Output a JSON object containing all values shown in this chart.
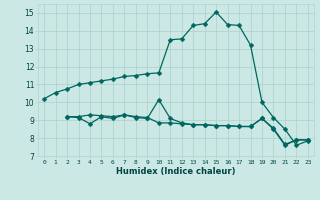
{
  "background_color": "#cce8e4",
  "grid_color": "#b0d4d0",
  "line_color": "#006660",
  "xlim": [
    -0.5,
    23.5
  ],
  "ylim": [
    7,
    15.5
  ],
  "xlabel": "Humidex (Indice chaleur)",
  "xtick_labels": [
    "0",
    "1",
    "2",
    "3",
    "4",
    "5",
    "6",
    "7",
    "8",
    "9",
    "10",
    "11",
    "12",
    "13",
    "14",
    "15",
    "16",
    "17",
    "18",
    "19",
    "20",
    "21",
    "22",
    "23"
  ],
  "yticks": [
    7,
    8,
    9,
    10,
    11,
    12,
    13,
    14,
    15
  ],
  "curve1_x": [
    0,
    1,
    2,
    3,
    4,
    5,
    6,
    7,
    8,
    9,
    10,
    11,
    12,
    13,
    14,
    15,
    16,
    17,
    18,
    19,
    20,
    21,
    22,
    23
  ],
  "curve1_y": [
    10.2,
    10.55,
    10.75,
    11.0,
    11.1,
    11.2,
    11.3,
    11.45,
    11.5,
    11.6,
    11.65,
    13.5,
    13.55,
    14.3,
    14.4,
    15.05,
    14.35,
    14.3,
    13.2,
    10.0,
    9.15,
    8.5,
    7.6,
    7.85
  ],
  "curve2_x": [
    2,
    3,
    4,
    5,
    6,
    7,
    8,
    9,
    10,
    11,
    12,
    13,
    14,
    15,
    16,
    17,
    18,
    19,
    20,
    21,
    22,
    23
  ],
  "curve2_y": [
    9.2,
    9.2,
    9.3,
    9.25,
    9.2,
    9.3,
    9.2,
    9.15,
    8.85,
    8.85,
    8.8,
    8.75,
    8.75,
    8.7,
    8.7,
    8.65,
    8.65,
    9.1,
    8.5,
    7.6,
    7.9,
    7.9
  ],
  "curve3_x": [
    2,
    3,
    4,
    5,
    6,
    7,
    8,
    9,
    10,
    11,
    12,
    13,
    14,
    15,
    16,
    17,
    18,
    19,
    20,
    21,
    22,
    23
  ],
  "curve3_y": [
    9.2,
    9.15,
    8.8,
    9.2,
    9.1,
    9.3,
    9.15,
    9.1,
    10.15,
    9.1,
    8.85,
    8.75,
    8.75,
    8.7,
    8.7,
    8.65,
    8.65,
    9.1,
    8.55,
    7.65,
    7.9,
    7.9
  ],
  "markersize": 2.5,
  "linewidth": 0.9
}
